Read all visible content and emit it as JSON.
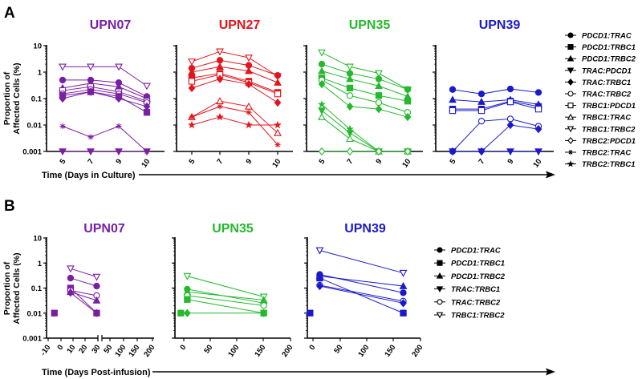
{
  "chart_data": [
    {
      "panel": "A",
      "type": "line",
      "yscale": "log",
      "ylabel": "Proportion of Affected Cells (%)",
      "ylim": [
        0.001,
        10
      ],
      "yticks": [
        "10",
        "1",
        "0.1",
        "0.01",
        "0.001"
      ],
      "xlabel": "Time (Days in Culture)",
      "x": [
        5,
        7,
        9,
        10
      ],
      "xtick_labels": [
        "5",
        "7",
        "9",
        "10"
      ],
      "legend_position": "right",
      "legend": [
        {
          "name": "PDCD1:TRAC",
          "marker": "circle",
          "filled": true
        },
        {
          "name": "PDCD1:TRBC1",
          "marker": "square",
          "filled": true
        },
        {
          "name": "PDCD1:TRBC2",
          "marker": "triangle-up",
          "filled": true
        },
        {
          "name": "TRAC:PDCD1",
          "marker": "triangle-down",
          "filled": true
        },
        {
          "name": "TRAC:TRBC1",
          "marker": "diamond",
          "filled": true
        },
        {
          "name": "TRAC:TRBC2",
          "marker": "circle",
          "filled": false
        },
        {
          "name": "TRBC1:PDCD1",
          "marker": "square",
          "filled": false
        },
        {
          "name": "TRBC1:TRAC",
          "marker": "triangle-up",
          "filled": false
        },
        {
          "name": "TRBC1:TRBC2",
          "marker": "triangle-down",
          "filled": false
        },
        {
          "name": "TRBC2:PDCD1",
          "marker": "diamond",
          "filled": false
        },
        {
          "name": "TRBC2:TRAC",
          "marker": "asterisk",
          "filled": false
        },
        {
          "name": "TRBC2:TRBC1",
          "marker": "star",
          "filled": true
        }
      ],
      "subplots": [
        {
          "title": "UPN07",
          "color": "#7a1fa2",
          "series": [
            {
              "name": "TRBC1:TRBC2",
              "values": [
                1.6,
                1.6,
                1.6,
                0.3
              ]
            },
            {
              "name": "PDCD1:TRAC",
              "values": [
                0.5,
                0.5,
                0.4,
                0.12
              ]
            },
            {
              "name": "PDCD1:TRBC2",
              "values": [
                0.25,
                0.38,
                0.28,
                0.1
              ]
            },
            {
              "name": "TRBC1:PDCD1",
              "values": [
                0.2,
                0.28,
                0.18,
                0.08
              ]
            },
            {
              "name": "TRAC:TRBC2",
              "values": [
                0.15,
                0.22,
                0.15,
                0.07
              ]
            },
            {
              "name": "PDCD1:TRBC1",
              "values": [
                0.13,
                0.18,
                0.12,
                0.03
              ]
            },
            {
              "name": "TRAC:TRBC1",
              "values": [
                0.1,
                0.18,
                0.1,
                0.05
              ]
            },
            {
              "name": "TRBC2:TRAC",
              "values": [
                0.009,
                0.0035,
                0.009,
                0.001
              ]
            },
            {
              "name": "TRAC:PDCD1",
              "values": [
                0.001,
                0.001,
                0.001,
                0.001
              ]
            }
          ]
        },
        {
          "title": "UPN27",
          "color": "#e3141b",
          "series": [
            {
              "name": "TRBC1:TRBC2",
              "values": [
                2.5,
                6.0,
                3.5,
                0.7
              ]
            },
            {
              "name": "PDCD1:TRAC",
              "values": [
                1.4,
                2.8,
                1.8,
                0.75
              ]
            },
            {
              "name": "PDCD1:TRBC2",
              "values": [
                1.0,
                1.6,
                1.1,
                0.4
              ]
            },
            {
              "name": "PDCD1:TRBC1",
              "values": [
                0.6,
                0.9,
                0.45,
                0.17
              ]
            },
            {
              "name": "TRBC1:PDCD1",
              "values": [
                0.45,
                0.8,
                0.4,
                0.15
              ]
            },
            {
              "name": "TRAC:TRBC1",
              "values": [
                0.25,
                0.55,
                0.35,
                0.07
              ]
            },
            {
              "name": "TRBC1:TRAC",
              "values": [
                0.02,
                0.08,
                0.05,
                0.005
              ]
            },
            {
              "name": "TRBC2:TRAC",
              "values": [
                0.02,
                0.05,
                0.03,
                0.0018
              ]
            },
            {
              "name": "TRBC2:TRBC1",
              "values": [
                0.01,
                0.02,
                0.01,
                0.01
              ]
            }
          ]
        },
        {
          "title": "UPN35",
          "color": "#25b92d",
          "series": [
            {
              "name": "TRBC1:TRBC2",
              "values": [
                5.5,
                1.6,
                0.9,
                0.22
              ]
            },
            {
              "name": "PDCD1:TRAC",
              "values": [
                2.0,
                0.9,
                0.55,
                0.22
              ]
            },
            {
              "name": "PDCD1:TRBC2",
              "values": [
                1.1,
                0.55,
                0.3,
                0.12
              ]
            },
            {
              "name": "PDCD1:TRBC1",
              "values": [
                0.6,
                0.25,
                0.13,
                0.08
              ]
            },
            {
              "name": "TRAC:TRBC2",
              "values": [
                0.5,
                0.13,
                0.07,
                0.03
              ]
            },
            {
              "name": "TRAC:TRBC1",
              "values": [
                0.35,
                0.05,
                0.04,
                0.02
              ]
            },
            {
              "name": "TRBC2:TRBC1",
              "values": [
                0.06,
                0.007,
                0.001,
                0.001
              ]
            },
            {
              "name": "TRAC:PDCD1",
              "values": [
                0.035,
                0.005,
                0.001,
                0.001
              ]
            },
            {
              "name": "TRBC1:TRAC",
              "values": [
                0.02,
                0.003,
                0.001,
                0.001
              ]
            },
            {
              "name": "TRBC2:PDCD1",
              "values": [
                0.001,
                0.001,
                0.001,
                0.001
              ]
            }
          ]
        },
        {
          "title": "UPN39",
          "color": "#1a1acb",
          "series": [
            {
              "name": "PDCD1:TRAC",
              "values": [
                0.22,
                0.15,
                0.23,
                0.17
              ]
            },
            {
              "name": "PDCD1:TRBC2",
              "values": [
                0.09,
                0.075,
                0.09,
                0.06
              ]
            },
            {
              "name": "PDCD1:TRBC1",
              "values": [
                0.04,
                0.04,
                0.08,
                0.05
              ]
            },
            {
              "name": "TRBC1:PDCD1",
              "values": [
                0.035,
                0.035,
                0.075,
                0.04
              ]
            },
            {
              "name": "TRAC:TRBC2",
              "values": [
                0.001,
                0.014,
                0.017,
                0.009
              ]
            },
            {
              "name": "TRAC:TRBC1",
              "values": [
                0.001,
                0.001,
                0.01,
                0.007
              ]
            },
            {
              "name": "TRAC:PDCD1",
              "values": [
                0.001,
                0.001,
                0.001,
                0.001
              ]
            }
          ]
        }
      ]
    },
    {
      "panel": "B",
      "type": "line",
      "yscale": "log",
      "ylabel": "Proportion of Affected Cells (%)",
      "ylim": [
        0.001,
        10
      ],
      "yticks": [
        "10",
        "1",
        "0.1",
        "0.01",
        "0.001"
      ],
      "xlabel": "Time (Days Post-infusion)",
      "legend_position": "right",
      "legend": [
        {
          "name": "PDCD1:TRAC",
          "marker": "circle",
          "filled": true
        },
        {
          "name": "PDCD1:TRBC1",
          "marker": "square",
          "filled": true
        },
        {
          "name": "PDCD1:TRBC2",
          "marker": "triangle-up",
          "filled": true
        },
        {
          "name": "TRAC:TRBC1",
          "marker": "triangle-down",
          "filled": true
        },
        {
          "name": "TRAC:TRBC2",
          "marker": "circle",
          "filled": false
        },
        {
          "name": "TRBC1:TRBC2",
          "marker": "triangle-down",
          "filled": false
        }
      ],
      "subplots": [
        {
          "title": "UPN07",
          "color": "#7a1fa2",
          "xtick_labels": [
            "-10",
            "0",
            "10",
            "20",
            "30",
            "50",
            "100",
            "150",
            "200"
          ],
          "x_broken_axis": true,
          "series": [
            {
              "name": "PDCD1:TRBC1",
              "x": [
                -5
              ],
              "values": [
                0.01
              ]
            },
            {
              "name": "TRBC1:TRBC2",
              "x": [
                8,
                29
              ],
              "values": [
                0.6,
                0.28
              ]
            },
            {
              "name": "PDCD1:TRAC",
              "x": [
                8,
                29
              ],
              "values": [
                0.25,
                0.12
              ]
            },
            {
              "name": "PDCD1:TRBC1",
              "x": [
                8,
                29
              ],
              "values": [
                0.1,
                0.01
              ]
            },
            {
              "name": "TRAC:TRBC2",
              "x": [
                8,
                29
              ],
              "values": [
                0.08,
                0.05
              ]
            },
            {
              "name": "PDCD1:TRBC2",
              "x": [
                8,
                29
              ],
              "values": [
                0.07,
                0.032
              ]
            },
            {
              "name": "TRAC:TRBC1",
              "x": [
                8,
                29
              ],
              "values": [
                0.065,
                0.01
              ]
            }
          ]
        },
        {
          "title": "UPN35",
          "color": "#25b92d",
          "xtick_labels": [
            "0",
            "50",
            "100",
            "150",
            "200"
          ],
          "series": [
            {
              "name": "PDCD1:TRBC1",
              "x": [
                -5
              ],
              "values": [
                0.01
              ]
            },
            {
              "name": "TRAC:TRBC1",
              "x": [
                7,
                150
              ],
              "values": [
                0.01,
                0.01
              ]
            },
            {
              "name": "TRBC1:TRBC2",
              "x": [
                7,
                150
              ],
              "values": [
                0.3,
                0.045
              ]
            },
            {
              "name": "PDCD1:TRAC",
              "x": [
                7,
                150
              ],
              "values": [
                0.09,
                0.025
              ]
            },
            {
              "name": "PDCD1:TRBC2",
              "x": [
                7,
                150
              ],
              "values": [
                0.07,
                0.033
              ]
            },
            {
              "name": "TRAC:TRBC2",
              "x": [
                7,
                150
              ],
              "values": [
                0.05,
                0.02
              ]
            },
            {
              "name": "PDCD1:TRBC1",
              "x": [
                7,
                150
              ],
              "values": [
                0.035,
                0.01
              ]
            }
          ]
        },
        {
          "title": "UPN39",
          "color": "#1a1acb",
          "xtick_labels": [
            "0",
            "50",
            "100",
            "150",
            "200"
          ],
          "series": [
            {
              "name": "PDCD1:TRBC1",
              "x": [
                -5
              ],
              "values": [
                0.01
              ]
            },
            {
              "name": "TRBC1:TRBC2",
              "x": [
                13,
                168
              ],
              "values": [
                3.2,
                0.4
              ]
            },
            {
              "name": "PDCD1:TRAC",
              "x": [
                13,
                168
              ],
              "values": [
                0.35,
                0.065
              ]
            },
            {
              "name": "PDCD1:TRBC2",
              "x": [
                13,
                168
              ],
              "values": [
                0.3,
                0.12
              ]
            },
            {
              "name": "PDCD1:TRBC1",
              "x": [
                13,
                168
              ],
              "values": [
                0.25,
                0.01
              ]
            },
            {
              "name": "TRAC:TRBC2",
              "x": [
                13,
                168
              ],
              "values": [
                0.13,
                0.03
              ]
            },
            {
              "name": "TRAC:TRBC1",
              "x": [
                13,
                168
              ],
              "values": [
                0.12,
                0.025
              ]
            }
          ]
        }
      ]
    }
  ]
}
